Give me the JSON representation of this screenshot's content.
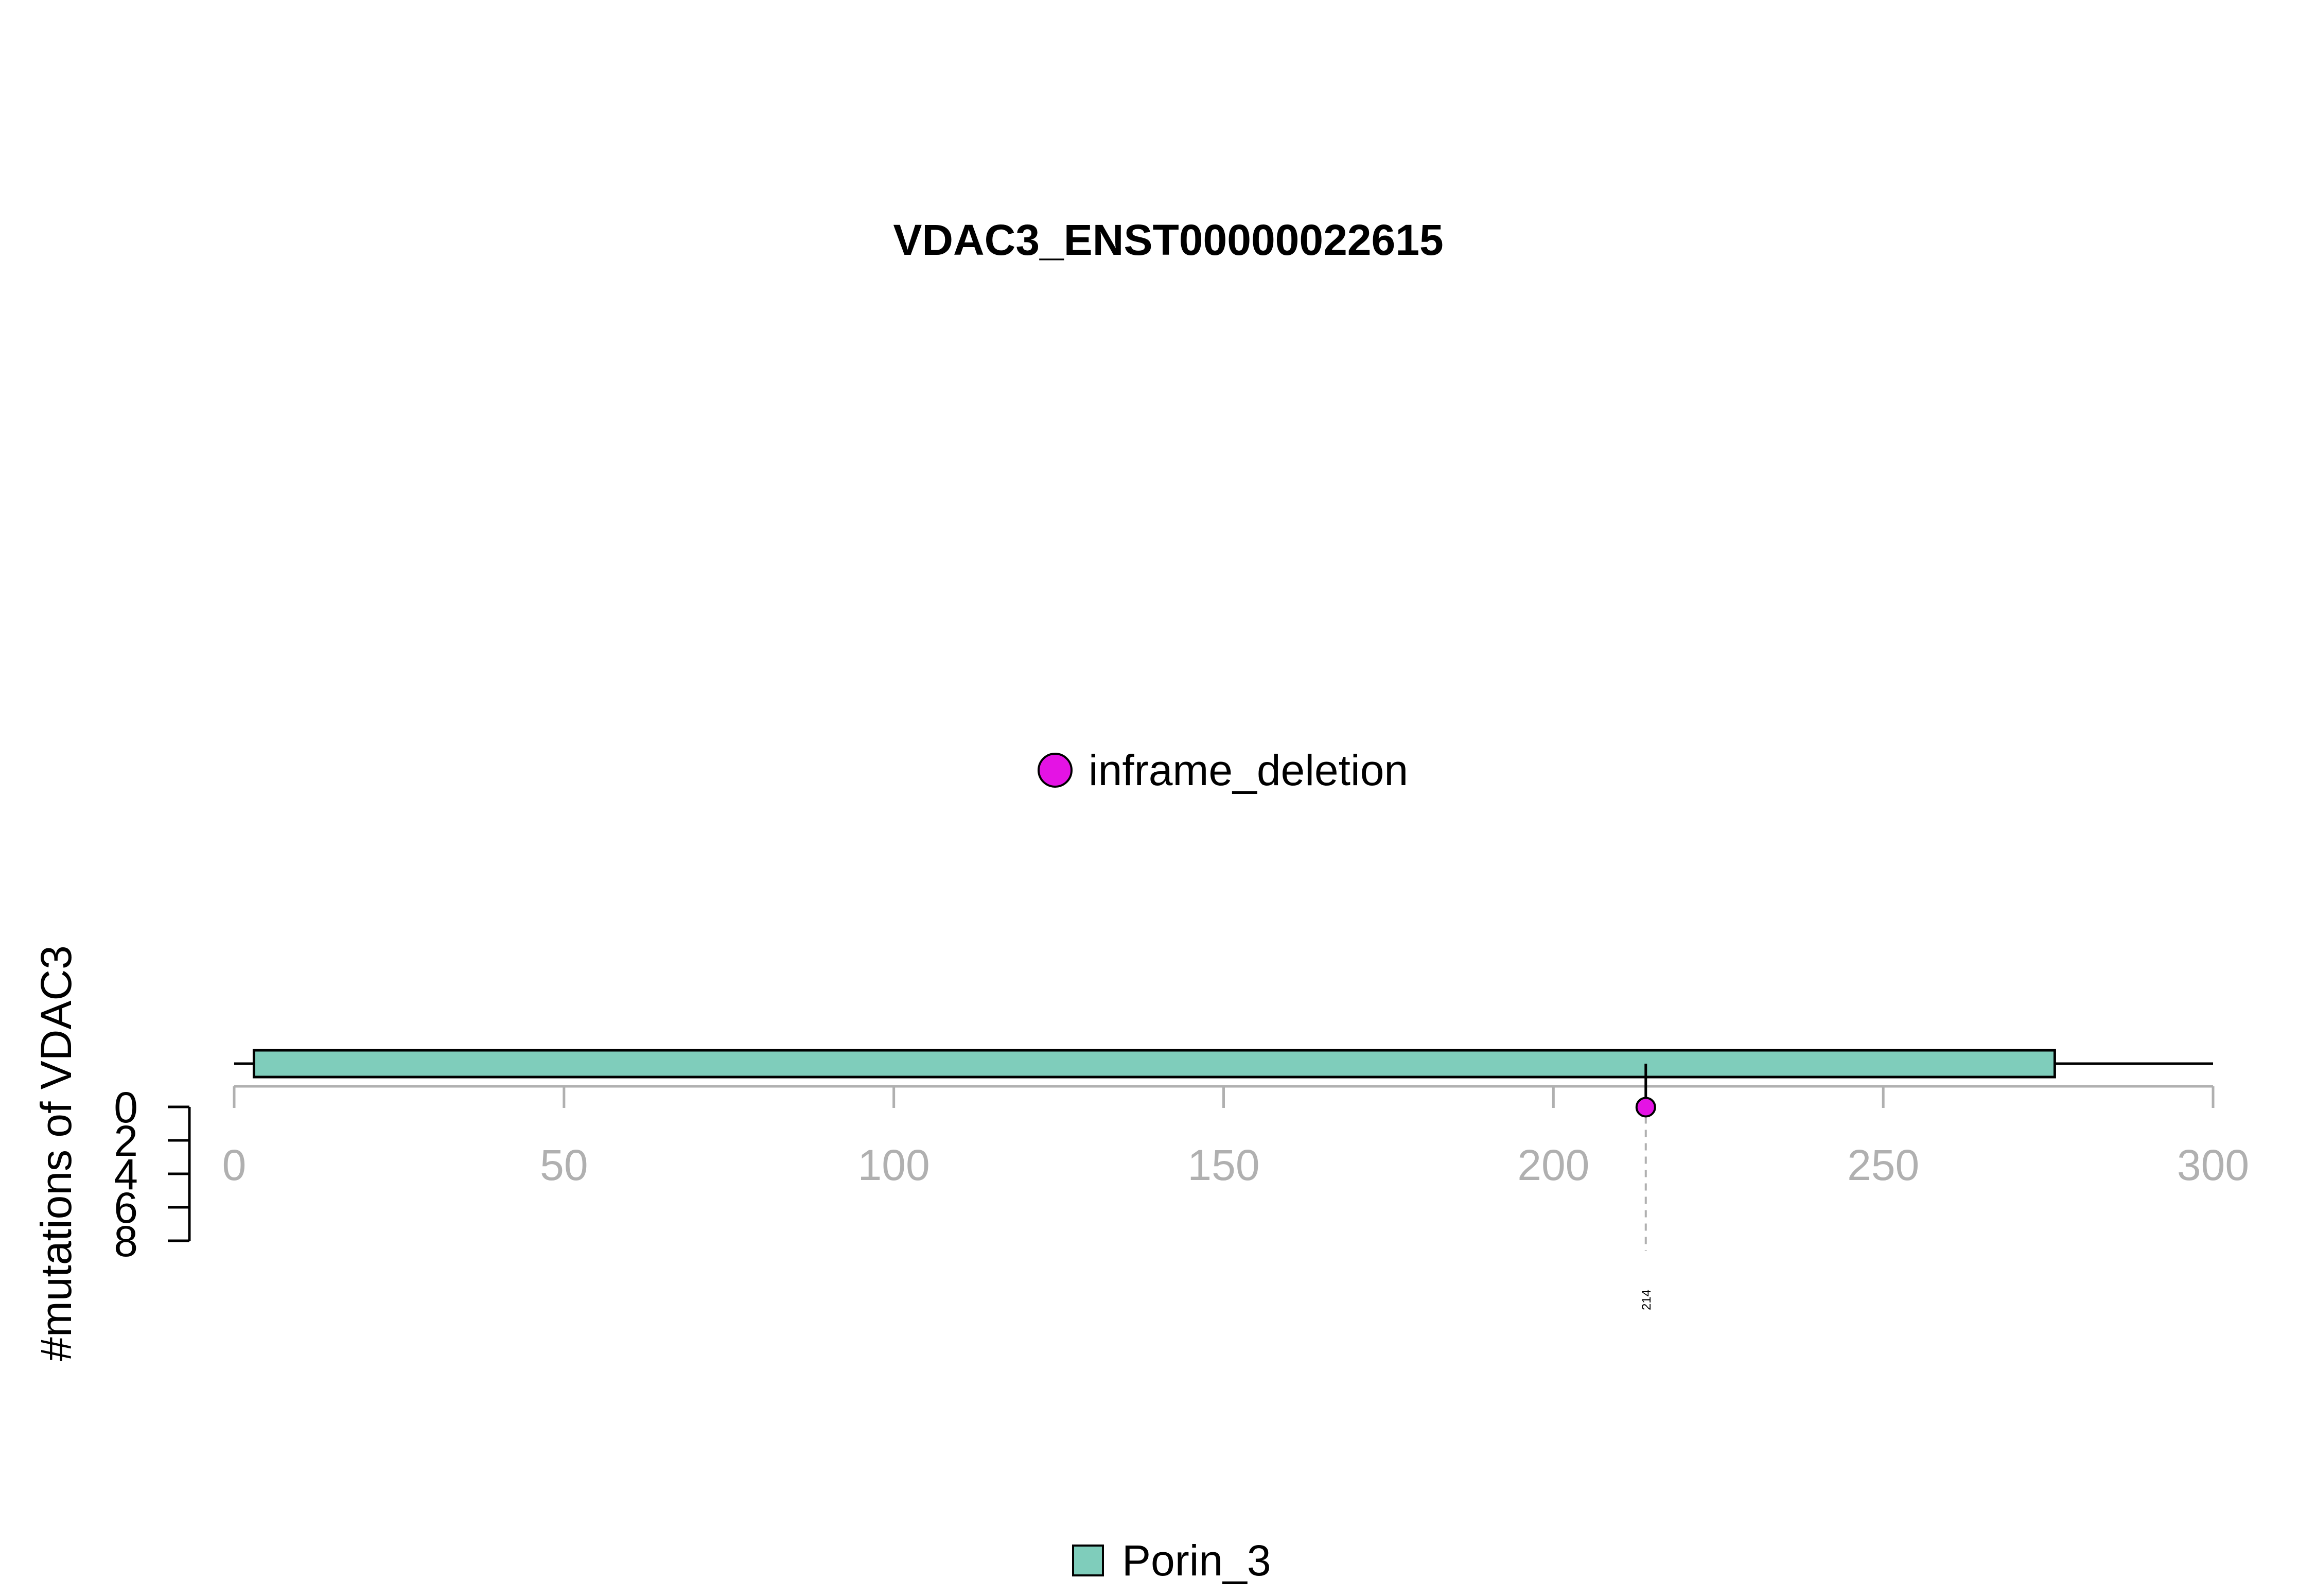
{
  "chart_data": {
    "type": "scatter",
    "title": "VDAC3_ENST00000022615",
    "ylabel": "#mutations of VDAC3",
    "xlabel": "",
    "xlim": [
      0,
      300
    ],
    "x_ticks": [
      "0",
      "50",
      "100",
      "150",
      "200",
      "250",
      "300"
    ],
    "y_ticks": [
      "0",
      "2",
      "4",
      "6",
      "8"
    ],
    "ylim": [
      0,
      8
    ],
    "protein_length": 300,
    "domains": [
      {
        "name": "Porin_3",
        "start": 3,
        "end": 276,
        "color": "#7fcdbb"
      }
    ],
    "mutations": [
      {
        "position": 214,
        "count": 1,
        "type": "inframe_deletion",
        "label": "214"
      }
    ],
    "mutation_legend": [
      {
        "label": "inframe_deletion",
        "color": "#e413e4"
      }
    ],
    "domain_legend": [
      {
        "label": "Porin_3",
        "color": "#7fcdbb"
      }
    ]
  }
}
